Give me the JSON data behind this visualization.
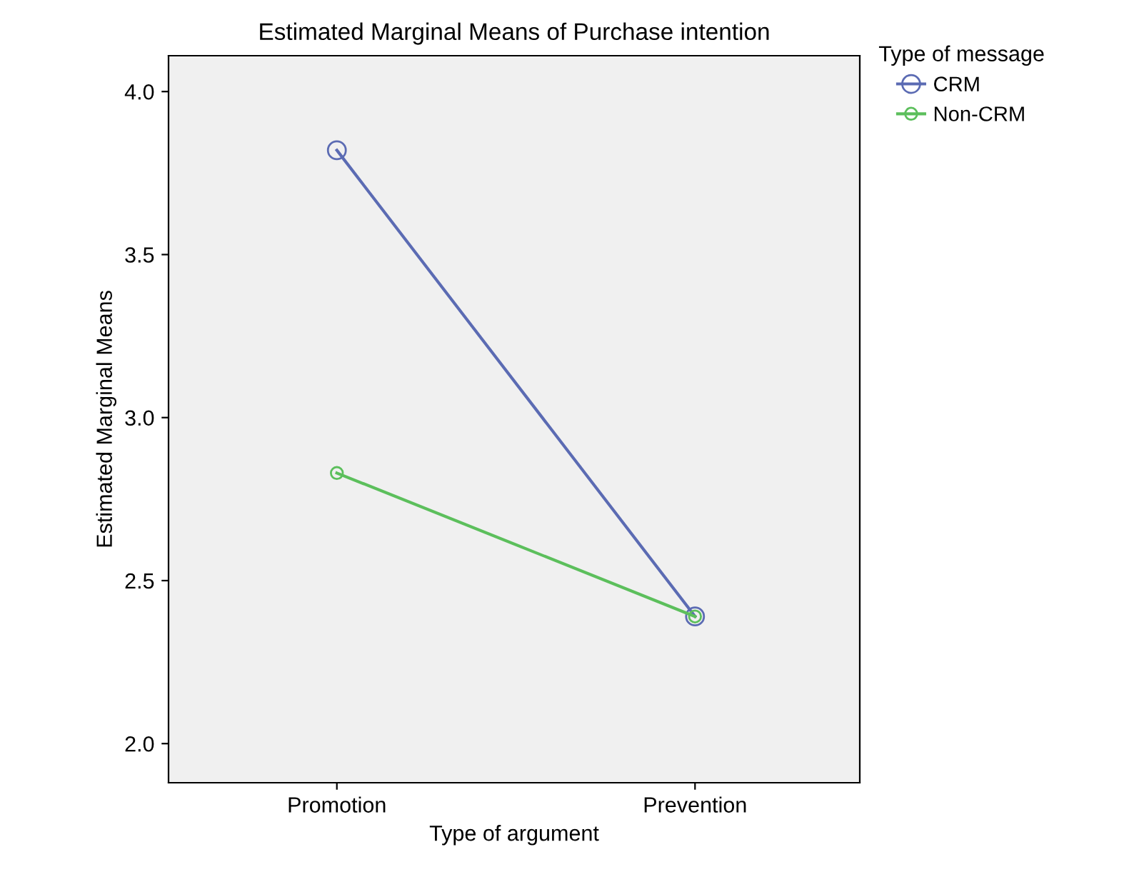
{
  "chart_data": {
    "type": "line",
    "title": "Estimated Marginal Means of Purchase intention",
    "xlabel": "Type of argument",
    "ylabel": "Estimated Marginal Means",
    "legend_title": "Type of message",
    "categories": [
      "Promotion",
      "Prevention"
    ],
    "series": [
      {
        "name": "CRM",
        "color": "#5b6bb3",
        "values": [
          3.82,
          2.39
        ]
      },
      {
        "name": "Non-CRM",
        "color": "#5cbf5c",
        "values": [
          2.83,
          2.39
        ]
      }
    ],
    "ylim": [
      1.88,
      4.11
    ],
    "yticks": [
      {
        "value": 2,
        "label": "2.0"
      },
      2.5,
      {
        "value": 3,
        "label": "3.0"
      },
      3.5,
      {
        "value": 4,
        "label": "4.0"
      }
    ],
    "grid": false,
    "legend": "top right",
    "marker": "circle"
  }
}
